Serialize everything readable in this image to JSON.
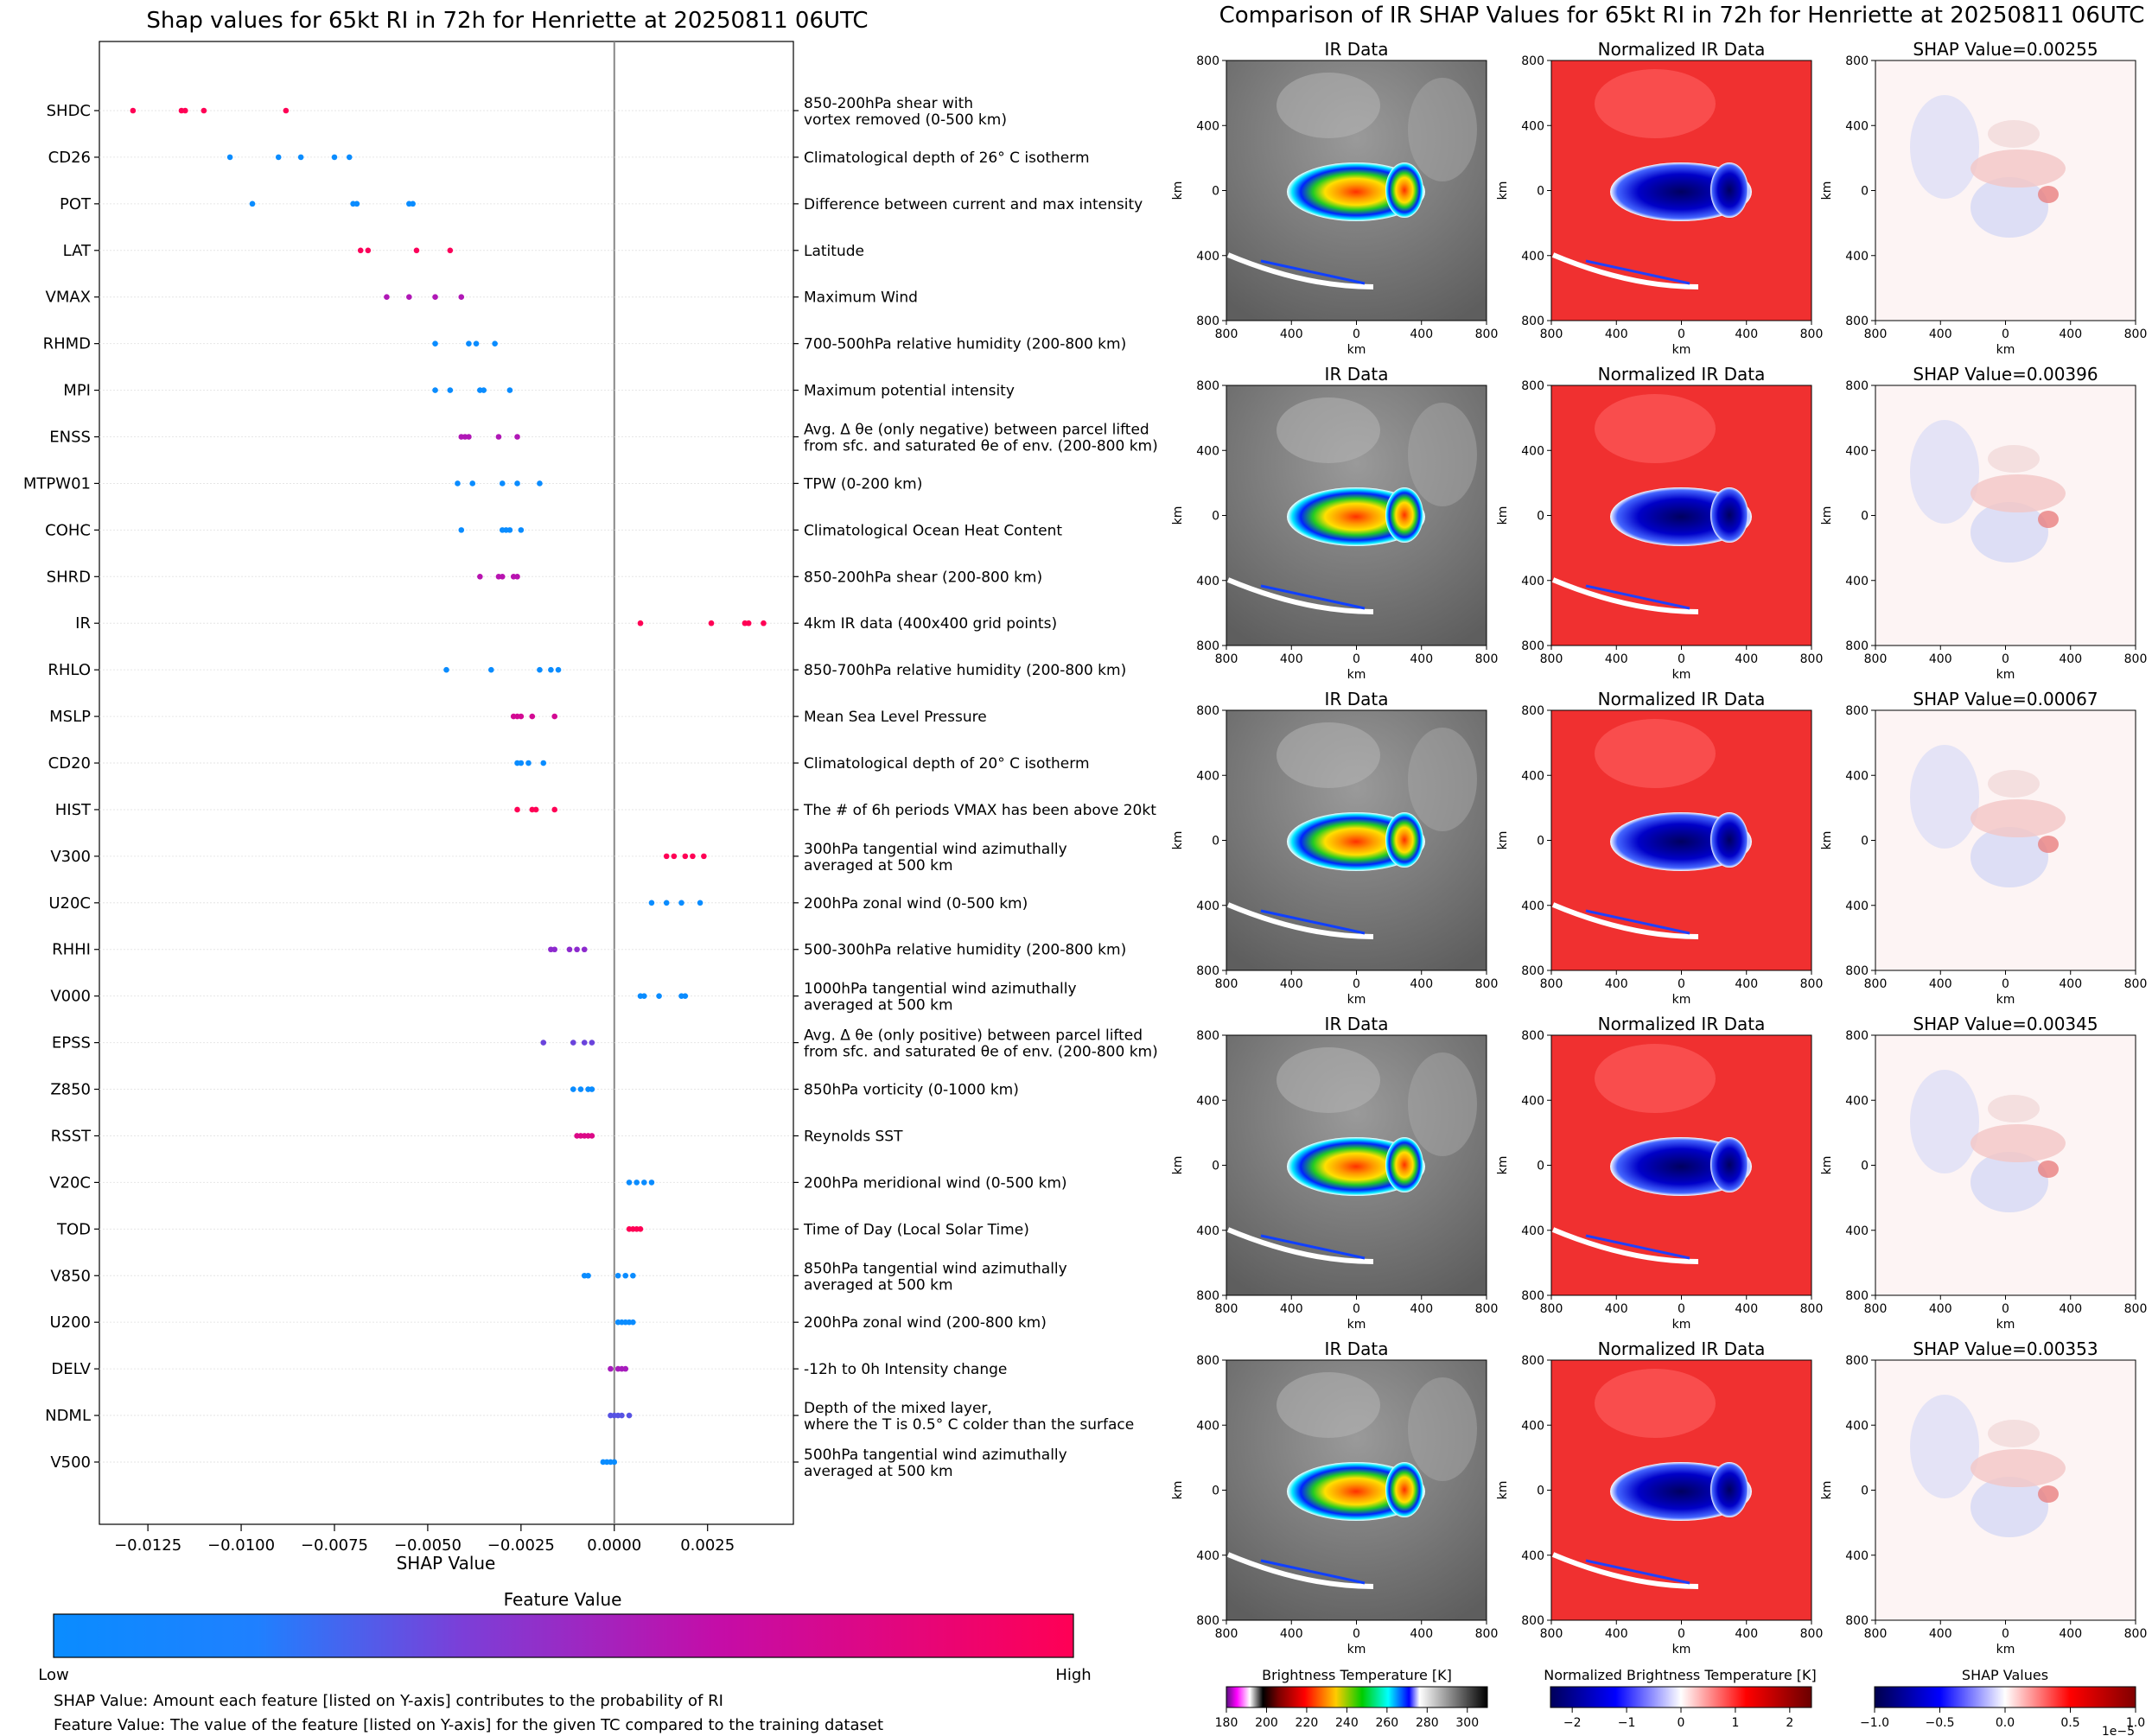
{
  "left": {
    "title": "Shap values for 65kt RI in 72h for Henriette at 20250811 06UTC",
    "xlabel": "SHAP Value",
    "xticks": [
      "−0.0125",
      "−0.0100",
      "−0.0075",
      "−0.0050",
      "−0.0025",
      "0.0000",
      "0.0025"
    ],
    "colorbar": {
      "title": "Feature Value",
      "low": "Low",
      "high": "High",
      "colors": [
        "#0a8cff",
        "#8a2bd0",
        "#c40da8",
        "#ff0055"
      ]
    },
    "notes": [
      "SHAP Value: Amount each feature [listed on Y-axis] contributes to the probability of RI",
      "Feature Value: The value of the feature [listed on Y-axis] for the given TC compared to the training dataset"
    ]
  },
  "right": {
    "title": "Comparison of IR SHAP Values for 65kt RI in 72h for Henriette at 20250811 06UTC",
    "col_ir_title": "IR Data",
    "col_norm_title": "Normalized IR Data",
    "shap_titles": [
      "SHAP Value=0.00255",
      "SHAP Value=0.00396",
      "SHAP Value=0.00067",
      "SHAP Value=0.00345",
      "SHAP Value=0.00353"
    ],
    "axis_ticks": [
      "800",
      "400",
      "0",
      "400",
      "800"
    ],
    "axis_unit": "km",
    "colorbars": [
      {
        "title": "Brightness Temperature [K]",
        "ticks": [
          "180",
          "200",
          "220",
          "240",
          "260",
          "280",
          "300"
        ]
      },
      {
        "title": "Normalized Brightness Temperature [K]",
        "ticks": [
          "−2",
          "−1",
          "0",
          "1",
          "2"
        ]
      },
      {
        "title": "SHAP Values",
        "ticks": [
          "−1.0",
          "−0.5",
          "0.0",
          "0.5",
          "1.0"
        ],
        "exponent": "1e−5"
      }
    ]
  },
  "chart_data": [
    {
      "type": "scatter",
      "title": "Shap values for 65kt RI in 72h for Henriette at 20250811 06UTC",
      "xlabel": "SHAP Value",
      "xlim": [
        -0.0138,
        0.0048
      ],
      "features": [
        {
          "name": "SHDC",
          "desc": "850-200hPa shear with\nvortex removed (0-500 km)",
          "level": 1.0,
          "shap": [
            -0.0129,
            -0.0116,
            -0.0115,
            -0.011,
            -0.0088
          ]
        },
        {
          "name": "CD26",
          "desc": "Climatological depth of 26° C isotherm",
          "level": 0.0,
          "shap": [
            -0.0103,
            -0.009,
            -0.0084,
            -0.0075,
            -0.0071
          ]
        },
        {
          "name": "POT",
          "desc": "Difference between current and max intensity",
          "level": 0.0,
          "shap": [
            -0.0097,
            -0.007,
            -0.0069,
            -0.0055,
            -0.0054
          ]
        },
        {
          "name": "LAT",
          "desc": "Latitude",
          "level": 0.98,
          "shap": [
            -0.0068,
            -0.0066,
            -0.0053,
            -0.0044
          ]
        },
        {
          "name": "VMAX",
          "desc": "Maximum Wind",
          "level": 0.55,
          "shap": [
            -0.0061,
            -0.0055,
            -0.0048,
            -0.0041
          ]
        },
        {
          "name": "RHMD",
          "desc": "700-500hPa relative humidity (200-800 km)",
          "level": 0.0,
          "shap": [
            -0.0048,
            -0.0039,
            -0.0037,
            -0.0032
          ]
        },
        {
          "name": "MPI",
          "desc": "Maximum potential intensity",
          "level": 0.0,
          "shap": [
            -0.0048,
            -0.0044,
            -0.0036,
            -0.0035,
            -0.0028
          ]
        },
        {
          "name": "ENSS",
          "desc": "Avg. Δ θe (only negative) between parcel lifted\nfrom sfc. and saturated θe of env. (200-800 km)",
          "level": 0.55,
          "shap": [
            -0.0041,
            -0.004,
            -0.0039,
            -0.0031,
            -0.0026
          ]
        },
        {
          "name": "MTPW01",
          "desc": "TPW (0-200 km)",
          "level": 0.0,
          "shap": [
            -0.0042,
            -0.0038,
            -0.003,
            -0.0026,
            -0.002
          ]
        },
        {
          "name": "COHC",
          "desc": "Climatological Ocean Heat Content",
          "level": 0.0,
          "shap": [
            -0.0041,
            -0.003,
            -0.0029,
            -0.0028,
            -0.0025
          ]
        },
        {
          "name": "SHRD",
          "desc": "850-200hPa shear (200-800 km)",
          "level": 0.6,
          "shap": [
            -0.0036,
            -0.0031,
            -0.003,
            -0.0027,
            -0.0026
          ]
        },
        {
          "name": "IR",
          "desc": "4km IR data (400x400 grid points)",
          "level": 1.0,
          "shap": [
            0.0007,
            0.0026,
            0.0035,
            0.0036,
            0.004
          ]
        },
        {
          "name": "RHLO",
          "desc": "850-700hPa relative humidity (200-800 km)",
          "level": 0.0,
          "shap": [
            -0.0045,
            -0.0033,
            -0.002,
            -0.0017,
            -0.0015
          ]
        },
        {
          "name": "MSLP",
          "desc": "Mean Sea Level Pressure",
          "level": 0.75,
          "shap": [
            -0.0027,
            -0.0026,
            -0.0025,
            -0.0022,
            -0.0016
          ]
        },
        {
          "name": "CD20",
          "desc": "Climatological depth of 20° C isotherm",
          "level": 0.0,
          "shap": [
            -0.0026,
            -0.0025,
            -0.0023,
            -0.0019
          ]
        },
        {
          "name": "HIST",
          "desc": "The # of 6h periods VMAX has been above 20kt",
          "level": 1.0,
          "shap": [
            -0.0026,
            -0.0022,
            -0.0021,
            -0.0016
          ]
        },
        {
          "name": "V300",
          "desc": "300hPa tangential wind azimuthally\naveraged at 500 km",
          "level": 1.0,
          "shap": [
            0.0014,
            0.0016,
            0.0019,
            0.0021,
            0.0024
          ]
        },
        {
          "name": "U20C",
          "desc": "200hPa zonal wind (0-500 km)",
          "level": 0.0,
          "shap": [
            0.001,
            0.0014,
            0.0018,
            0.0023
          ]
        },
        {
          "name": "RHHI",
          "desc": "500-300hPa relative humidity (200-800 km)",
          "level": 0.35,
          "shap": [
            -0.0017,
            -0.0016,
            -0.0012,
            -0.001,
            -0.0008
          ]
        },
        {
          "name": "V000",
          "desc": "1000hPa tangential wind azimuthally\naveraged at 500 km",
          "level": 0.0,
          "shap": [
            0.0007,
            0.0008,
            0.0012,
            0.0018,
            0.0019
          ]
        },
        {
          "name": "EPSS",
          "desc": "Avg. Δ θe (only positive) between parcel lifted\nfrom sfc. and saturated θe of env. (200-800 km)",
          "level": 0.25,
          "shap": [
            -0.0019,
            -0.0011,
            -0.0008,
            -0.0006
          ]
        },
        {
          "name": "Z850",
          "desc": "850hPa vorticity (0-1000 km)",
          "level": 0.0,
          "shap": [
            -0.0011,
            -0.0009,
            -0.0007,
            -0.0006
          ]
        },
        {
          "name": "RSST",
          "desc": "Reynolds SST",
          "level": 0.8,
          "shap": [
            -0.001,
            -0.0009,
            -0.0008,
            -0.0007,
            -0.0006
          ]
        },
        {
          "name": "V20C",
          "desc": "200hPa meridional wind (0-500 km)",
          "level": 0.0,
          "shap": [
            0.0004,
            0.0006,
            0.0008,
            0.001
          ]
        },
        {
          "name": "TOD",
          "desc": "Time of Day (Local Solar Time)",
          "level": 1.0,
          "shap": [
            0.0004,
            0.0005,
            0.0006,
            0.0007
          ]
        },
        {
          "name": "V850",
          "desc": "850hPa tangential wind azimuthally\naveraged at 500 km",
          "level": 0.0,
          "shap": [
            -0.0008,
            -0.0007,
            0.0001,
            0.0003,
            0.0005
          ]
        },
        {
          "name": "U200",
          "desc": "200hPa zonal wind (200-800 km)",
          "level": 0.0,
          "shap": [
            0.0001,
            0.0002,
            0.0003,
            0.0004,
            0.0005
          ]
        },
        {
          "name": "DELV",
          "desc": "-12h to 0h Intensity change",
          "level": 0.5,
          "shap": [
            -0.0001,
            0.0001,
            0.0002,
            0.0003
          ]
        },
        {
          "name": "NDML",
          "desc": "Depth of the mixed layer,\nwhere the T is 0.5° C colder than the surface",
          "level": 0.2,
          "shap": [
            -0.0001,
            0.0,
            0.0001,
            0.0002,
            0.0004
          ]
        },
        {
          "name": "V500",
          "desc": "500hPa tangential wind azimuthally\naveraged at 500 km",
          "level": 0.0,
          "shap": [
            -0.0003,
            -0.0002,
            -0.0001,
            0.0
          ]
        }
      ]
    },
    {
      "type": "heatmap",
      "title": "Comparison of IR SHAP Values for 65kt RI in 72h for Henriette at 20250811 06UTC",
      "panels": [
        "IR Data",
        "Normalized IR Data",
        "SHAP Value"
      ],
      "rows": 5,
      "shap_values": [
        0.00255,
        0.00396,
        0.00067,
        0.00345,
        0.00353
      ],
      "xlim": [
        -800,
        800
      ],
      "ylim": [
        -800,
        800
      ],
      "xlabel": "km",
      "ylabel": "km"
    }
  ]
}
